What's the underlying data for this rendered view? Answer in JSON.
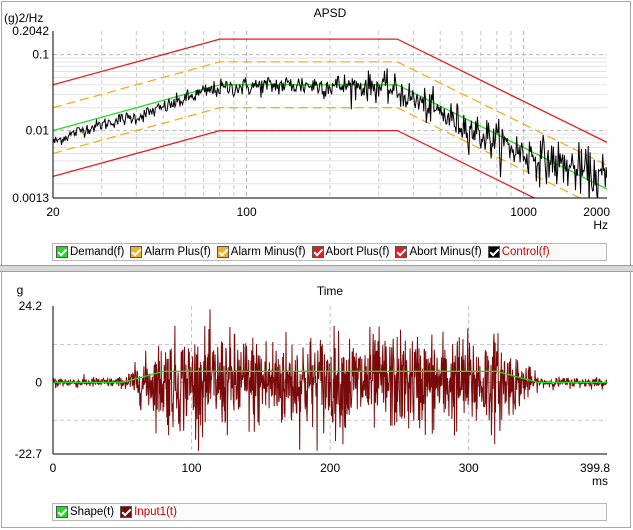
{
  "apsd": {
    "title": "APSD",
    "y_unit": "(g)2/Hz",
    "x_unit": "Hz",
    "y_ticks": [
      "0.2042",
      "0.1",
      "0.01",
      "0.0013"
    ],
    "x_ticks": [
      "20",
      "100",
      "1000",
      "2000"
    ],
    "legend": [
      {
        "label": "Demand(f)",
        "color": "#22dd22"
      },
      {
        "label": "Alarm Plus(f)",
        "color": "#f0b020"
      },
      {
        "label": "Alarm Minus(f)",
        "color": "#f0b020"
      },
      {
        "label": "Abort Plus(f)",
        "color": "#e02020"
      },
      {
        "label": "Abort Minus(f)",
        "color": "#e02020"
      },
      {
        "label": "Control(f)",
        "color": "#000000",
        "text_color": "#cc0000"
      }
    ]
  },
  "time": {
    "title": "Time",
    "y_unit": "g",
    "x_unit": "ms",
    "y_ticks": [
      "24.2",
      "0",
      "-22.7"
    ],
    "x_ticks": [
      "0",
      "100",
      "200",
      "300",
      "399.8"
    ],
    "legend": [
      {
        "label": "Shape(t)",
        "color": "#22dd22"
      },
      {
        "label": "Input1(t)",
        "color": "#7a0a0a",
        "text_color": "#cc0000"
      }
    ]
  },
  "chart_data": [
    {
      "type": "line",
      "title": "APSD",
      "ylabel": "(g)2/Hz",
      "xlabel": "Hz",
      "xscale": "log",
      "yscale": "log",
      "xlim": [
        20,
        2000
      ],
      "ylim": [
        0.0013,
        0.2042
      ],
      "grid": true,
      "legend_position": "bottom",
      "series": [
        {
          "name": "Demand(f)",
          "x": [
            20,
            80,
            350,
            2000
          ],
          "y": [
            0.01,
            0.04,
            0.04,
            0.0017
          ],
          "style": "solid",
          "color": "#22dd22"
        },
        {
          "name": "Alarm Plus(f)",
          "x": [
            20,
            80,
            350,
            2000
          ],
          "y": [
            0.02,
            0.08,
            0.08,
            0.0035
          ],
          "style": "dashed",
          "color": "#f0b020"
        },
        {
          "name": "Alarm Minus(f)",
          "x": [
            20,
            80,
            350,
            2000
          ],
          "y": [
            0.005,
            0.02,
            0.02,
            0.00087
          ],
          "style": "dashed",
          "color": "#f0b020"
        },
        {
          "name": "Abort Plus(f)",
          "x": [
            20,
            80,
            350,
            2000
          ],
          "y": [
            0.04,
            0.16,
            0.16,
            0.007
          ],
          "style": "solid",
          "color": "#e02020"
        },
        {
          "name": "Abort Minus(f)",
          "x": [
            20,
            80,
            350,
            2000
          ],
          "y": [
            0.0025,
            0.01,
            0.01,
            0.00044
          ],
          "style": "solid",
          "color": "#e02020"
        },
        {
          "name": "Control(f)",
          "x": [
            20,
            25,
            30,
            35,
            40,
            50,
            60,
            70,
            80,
            90,
            100,
            150,
            200,
            300,
            350,
            500,
            700,
            1000,
            1500,
            2000
          ],
          "y": [
            0.007,
            0.01,
            0.012,
            0.014,
            0.015,
            0.02,
            0.026,
            0.032,
            0.036,
            0.037,
            0.038,
            0.04,
            0.039,
            0.038,
            0.033,
            0.017,
            0.009,
            0.005,
            0.0032,
            0.0022
          ],
          "style": "solid",
          "color": "#000000"
        }
      ]
    },
    {
      "type": "line",
      "title": "Time",
      "ylabel": "g",
      "xlabel": "ms",
      "xlim": [
        0,
        399.8
      ],
      "ylim": [
        -22.7,
        24.2
      ],
      "grid": true,
      "legend_position": "bottom",
      "series": [
        {
          "name": "Shape(t)",
          "x": [
            0,
            50,
            80,
            320,
            350,
            399.8
          ],
          "y": [
            0,
            0,
            3.5,
            3.5,
            0,
            0
          ],
          "color": "#22dd22"
        },
        {
          "name": "Input1(t)",
          "x": [
            0,
            50,
            80,
            100,
            125,
            150,
            200,
            250,
            300,
            320,
            350,
            399.8
          ],
          "y": [
            0,
            0.5,
            6,
            12,
            18,
            -18,
            19,
            -18,
            14,
            8,
            1,
            0
          ],
          "color": "#7a0a0a"
        }
      ]
    }
  ]
}
